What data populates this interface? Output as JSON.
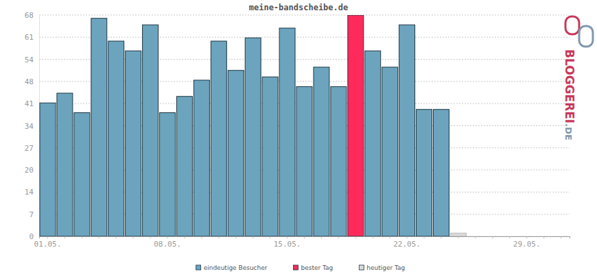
{
  "chart_data": {
    "type": "bar",
    "title": "meine-bandscheibe.de",
    "categories": [
      "01.05.",
      null,
      null,
      null,
      null,
      null,
      null,
      "08.05.",
      null,
      null,
      null,
      null,
      null,
      null,
      "15.05.",
      null,
      null,
      null,
      null,
      null,
      null,
      "22.05.",
      null,
      null,
      null,
      null,
      null,
      null,
      "29.05.",
      null,
      null
    ],
    "series": [
      {
        "name": "eindeutige Besucher",
        "color": "#6ca4be",
        "values": [
          41,
          44,
          38,
          67,
          60,
          57,
          65,
          38,
          43,
          48,
          60,
          51,
          61,
          49,
          64,
          46,
          52,
          46,
          null,
          57,
          52,
          65,
          39,
          39,
          null,
          null,
          null,
          null,
          null,
          null,
          null
        ]
      },
      {
        "name": "bester Tag",
        "color": "#ff2a5c",
        "values": [
          null,
          null,
          null,
          null,
          null,
          null,
          null,
          null,
          null,
          null,
          null,
          null,
          null,
          null,
          null,
          null,
          null,
          null,
          68,
          null,
          null,
          null,
          null,
          null,
          null,
          null,
          null,
          null,
          null,
          null,
          null
        ]
      },
      {
        "name": "heutiger Tag",
        "color": "#d9d9d9",
        "values": [
          null,
          null,
          null,
          null,
          null,
          null,
          null,
          null,
          null,
          null,
          null,
          null,
          null,
          null,
          null,
          null,
          null,
          null,
          null,
          null,
          null,
          null,
          null,
          null,
          1,
          null,
          null,
          null,
          null,
          null,
          null
        ]
      }
    ],
    "ylim": [
      0,
      68
    ],
    "yticks": [
      0,
      {
        "value": 6.8,
        "label": "7"
      },
      {
        "value": 13.6,
        "label": "14"
      },
      {
        "value": 20.4,
        "label": "20"
      },
      {
        "value": 27.2,
        "label": "27"
      },
      34,
      {
        "value": 40.8,
        "label": "41"
      },
      {
        "value": 47.6,
        "label": "48"
      },
      {
        "value": 54.4,
        "label": "54"
      },
      {
        "value": 61.2,
        "label": "61"
      },
      68
    ],
    "grid": true,
    "legend": "bottom",
    "annotations": [
      "BLOGGEREI",
      ".DE"
    ]
  }
}
